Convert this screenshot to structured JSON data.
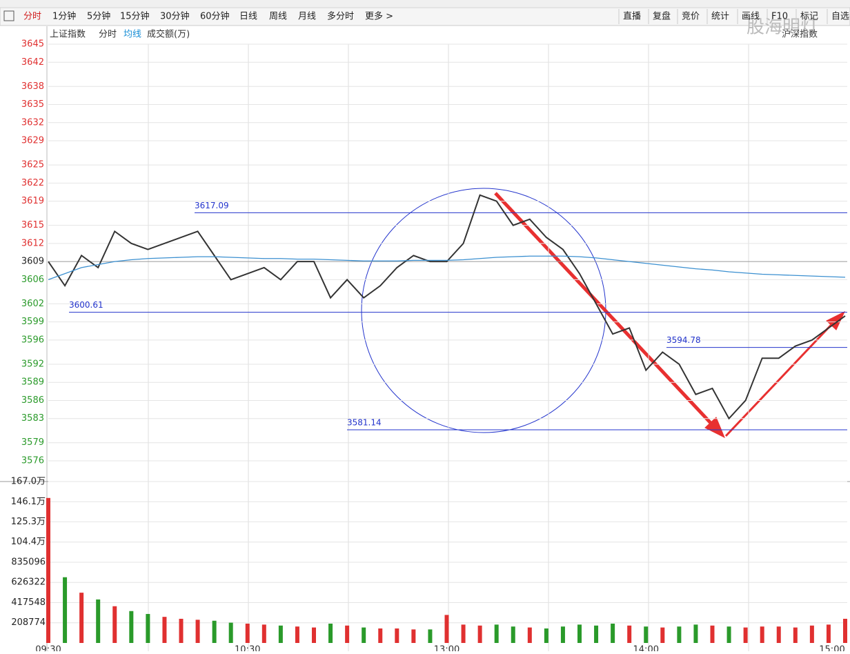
{
  "toolbar": {
    "tabs": [
      "分时",
      "1分钟",
      "5分钟",
      "15分钟",
      "30分钟",
      "60分钟",
      "日线",
      "周线",
      "月线",
      "多分时",
      "更多 >"
    ],
    "tools": [
      "直播",
      "复盘",
      "竞价",
      "统计",
      "画线",
      "F10",
      "标记",
      "自选"
    ],
    "market": "沪深指数",
    "watermark": "股海明灯"
  },
  "chart_data": [
    {
      "type": "line",
      "title": "上证指数",
      "ylim": [
        3576,
        3645
      ],
      "yticks": [
        3645,
        3642,
        3638,
        3635,
        3632,
        3629,
        3625,
        3622,
        3619,
        3615,
        3612,
        3609,
        3606,
        3602,
        3599,
        3596,
        3592,
        3589,
        3586,
        3583,
        3579,
        3576
      ],
      "grid": true,
      "series": [
        {
          "name": "分时",
          "color": "#333333",
          "values": [
            3609,
            3605,
            3610,
            3608,
            3614,
            3612,
            3611,
            3612,
            3613,
            3614,
            3610,
            3606,
            3607,
            3608,
            3606,
            3609,
            3609,
            3603,
            3606,
            3603,
            3605,
            3608,
            3610,
            3609,
            3609,
            3612,
            3620,
            3619,
            3615,
            3616,
            3613,
            3611,
            3607,
            3602,
            3597,
            3598,
            3591,
            3594,
            3592,
            3587,
            3588,
            3583,
            3586,
            3593,
            3593,
            3595,
            3596,
            3598,
            3600
          ]
        },
        {
          "name": "均线",
          "color": "#3a8fd0",
          "values": [
            3606,
            3607,
            3608,
            3608.5,
            3609,
            3609.3,
            3609.5,
            3609.6,
            3609.7,
            3609.8,
            3609.8,
            3609.7,
            3609.6,
            3609.5,
            3609.5,
            3609.4,
            3609.4,
            3609.3,
            3609.2,
            3609.1,
            3609.1,
            3609.1,
            3609.2,
            3609.2,
            3609.2,
            3609.3,
            3609.5,
            3609.7,
            3609.8,
            3609.9,
            3609.9,
            3609.9,
            3609.8,
            3609.6,
            3609.3,
            3609,
            3608.7,
            3608.4,
            3608.1,
            3607.8,
            3607.6,
            3607.3,
            3607.1,
            3606.9,
            3606.8,
            3606.7,
            3606.6,
            3606.5,
            3606.4
          ]
        }
      ],
      "annotations": [
        {
          "value": 3617.09
        },
        {
          "value": 3600.61
        },
        {
          "value": 3594.78
        },
        {
          "value": 3581.14
        }
      ]
    },
    {
      "type": "bar",
      "title": "成交额(万)",
      "categories": [
        "09:30",
        null,
        null,
        null,
        null,
        null,
        null,
        null,
        null,
        null,
        null,
        null,
        "10:30",
        null,
        null,
        null,
        null,
        null,
        null,
        null,
        null,
        null,
        null,
        null,
        "13:00",
        null,
        null,
        null,
        null,
        null,
        null,
        null,
        null,
        null,
        null,
        null,
        "14:00",
        null,
        null,
        null,
        null,
        null,
        null,
        null,
        null,
        null,
        null,
        null,
        "15:00"
      ],
      "values": [
        1500000,
        680000,
        520000,
        450000,
        380000,
        330000,
        300000,
        270000,
        250000,
        240000,
        230000,
        210000,
        200000,
        190000,
        180000,
        170000,
        160000,
        200000,
        180000,
        160000,
        150000,
        150000,
        140000,
        140000,
        290000,
        190000,
        180000,
        190000,
        170000,
        160000,
        150000,
        170000,
        190000,
        180000,
        200000,
        180000,
        170000,
        160000,
        170000,
        190000,
        180000,
        170000,
        160000,
        170000,
        170000,
        160000,
        180000,
        190000,
        250000
      ],
      "ylim": [
        0,
        1670000
      ],
      "yticks": [
        {
          "value": 1670000,
          "label": "167.0万"
        },
        {
          "value": 1461000,
          "label": "146.1万"
        },
        {
          "value": 1253000,
          "label": "125.3万"
        },
        {
          "value": 1044000,
          "label": "104.4万"
        },
        835096,
        626322,
        417548,
        208774
      ],
      "grid": true,
      "up_color": "#e03030",
      "down_color": "#2a9a2a"
    }
  ]
}
